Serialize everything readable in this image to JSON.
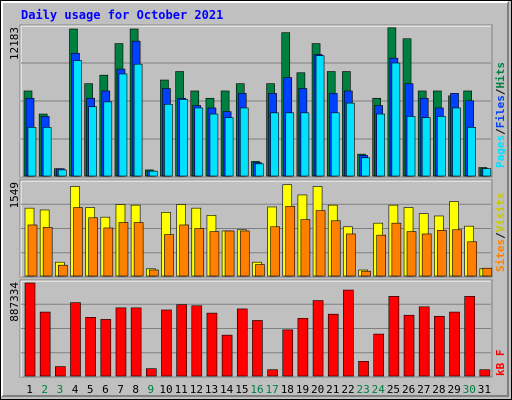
{
  "title": "Daily usage for October 2021",
  "colors": {
    "background": "#c0c0c0",
    "title": "#0000ff",
    "hits": "#008040",
    "files": "#0040ff",
    "pages": "#00e0ff",
    "visits": "#ffff00",
    "sites": "#ff8000",
    "kbytes": "#ff0000",
    "weekday_label": "#000000",
    "weekend_label": "#008040"
  },
  "chart_data": [
    {
      "type": "bar",
      "panel": "top",
      "ymax_label": "12183",
      "ymax": 12183,
      "categories": [
        "1",
        "2",
        "3",
        "4",
        "5",
        "6",
        "7",
        "8",
        "9",
        "10",
        "11",
        "12",
        "13",
        "14",
        "15",
        "16",
        "17",
        "18",
        "19",
        "20",
        "21",
        "22",
        "23",
        "24",
        "25",
        "26",
        "27",
        "28",
        "29",
        "30",
        "31"
      ],
      "weekend_days": [
        "2",
        "3",
        "9",
        "16",
        "17",
        "23",
        "24",
        "30"
      ],
      "grid": true,
      "series": [
        {
          "name": "Hits",
          "color": "#008040",
          "values": [
            7000,
            5100,
            600,
            12100,
            7600,
            8300,
            10900,
            12100,
            500,
            7900,
            8600,
            7000,
            6400,
            7000,
            7600,
            1200,
            7600,
            11800,
            8500,
            10900,
            8600,
            8600,
            1800,
            6400,
            12200,
            11300,
            7000,
            7000,
            6600,
            7000,
            700
          ]
        },
        {
          "name": "Files",
          "color": "#0040ff",
          "values": [
            6400,
            4900,
            600,
            10100,
            6400,
            7000,
            8800,
            11100,
            400,
            7200,
            6400,
            5800,
            5600,
            5300,
            6800,
            1100,
            6800,
            8100,
            7200,
            10000,
            6800,
            7000,
            1700,
            5800,
            9700,
            7600,
            6400,
            5600,
            6800,
            6200,
            600
          ]
        },
        {
          "name": "Pages",
          "color": "#00e0ff",
          "values": [
            4000,
            4000,
            500,
            9500,
            5700,
            6100,
            8400,
            9200,
            400,
            5900,
            6300,
            5600,
            5100,
            4800,
            5600,
            1000,
            5200,
            5200,
            5200,
            9900,
            5200,
            6000,
            1500,
            5100,
            9300,
            4900,
            4800,
            4900,
            5600,
            4000,
            600
          ]
        }
      ]
    },
    {
      "type": "bar",
      "panel": "middle",
      "ymax_label": "1549",
      "ymax": 1549,
      "categories": [
        "1",
        "2",
        "3",
        "4",
        "5",
        "6",
        "7",
        "8",
        "9",
        "10",
        "11",
        "12",
        "13",
        "14",
        "15",
        "16",
        "17",
        "18",
        "19",
        "20",
        "21",
        "22",
        "23",
        "24",
        "25",
        "26",
        "27",
        "28",
        "29",
        "30",
        "31"
      ],
      "grid": true,
      "series": [
        {
          "name": "Visits",
          "color": "#ffff00",
          "values": [
            1130,
            1100,
            230,
            1490,
            1140,
            980,
            1190,
            1180,
            120,
            1060,
            1190,
            1130,
            1010,
            750,
            770,
            230,
            1150,
            1520,
            1350,
            1490,
            1180,
            820,
            100,
            880,
            1180,
            1140,
            1040,
            1000,
            1240,
            830,
            120
          ]
        },
        {
          "name": "Sites",
          "color": "#ff8000",
          "values": [
            850,
            810,
            180,
            1140,
            970,
            800,
            890,
            890,
            100,
            690,
            850,
            790,
            740,
            750,
            750,
            190,
            820,
            1160,
            940,
            1090,
            920,
            700,
            80,
            680,
            880,
            740,
            700,
            760,
            770,
            570,
            130
          ]
        }
      ]
    },
    {
      "type": "bar",
      "panel": "bottom",
      "ymax_label": "887334",
      "ymax": 887334,
      "categories": [
        "1",
        "2",
        "3",
        "4",
        "5",
        "6",
        "7",
        "8",
        "9",
        "10",
        "11",
        "12",
        "13",
        "14",
        "15",
        "16",
        "17",
        "18",
        "19",
        "20",
        "21",
        "22",
        "23",
        "24",
        "25",
        "26",
        "27",
        "28",
        "29",
        "30",
        "31"
      ],
      "grid": true,
      "series": [
        {
          "name": "KBytes",
          "color": "#ff0000",
          "values": [
            887334,
            610000,
            90000,
            700000,
            560000,
            540000,
            650000,
            650000,
            70000,
            630000,
            680000,
            670000,
            600000,
            390000,
            640000,
            530000,
            60000,
            440000,
            550000,
            720000,
            590000,
            820000,
            140000,
            400000,
            760000,
            580000,
            660000,
            570000,
            610000,
            760000,
            60000
          ]
        }
      ]
    }
  ],
  "legend": {
    "top": {
      "pages": "Pages",
      "sep1": "/",
      "files": "Files",
      "sep2": "/",
      "hits": "Hits"
    },
    "middle": {
      "sites": "Sites",
      "sep": "/",
      "visits": "Visits"
    },
    "bottom": {
      "kbytes": "kB F"
    }
  }
}
